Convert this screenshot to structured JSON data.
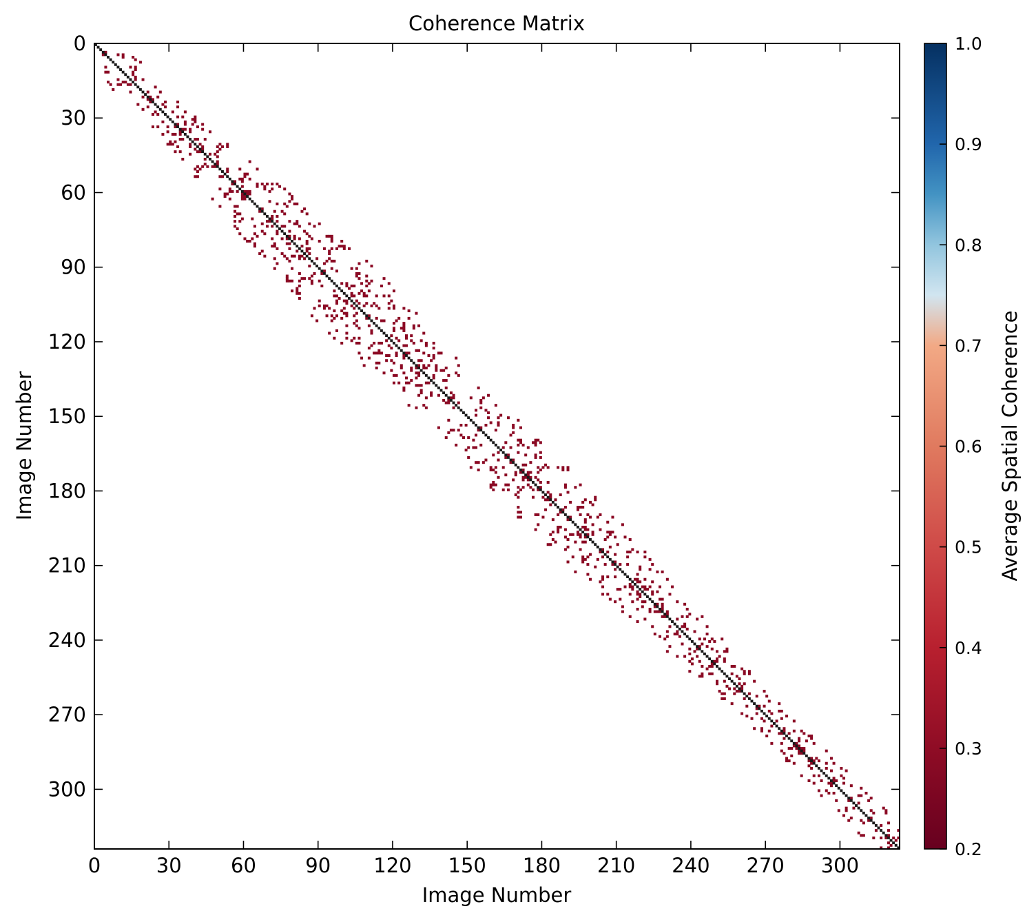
{
  "chart_data": {
    "type": "heatmap",
    "title": "Coherence Matrix",
    "xlabel": "Image Number",
    "ylabel": "Image Number",
    "n_images": 324,
    "x_ticks": [
      0,
      30,
      60,
      90,
      120,
      150,
      180,
      210,
      240,
      270,
      300
    ],
    "y_ticks": [
      0,
      30,
      60,
      90,
      120,
      150,
      180,
      210,
      240,
      270,
      300
    ],
    "xlim": [
      0,
      324
    ],
    "ylim": [
      324,
      0
    ],
    "colorbar": {
      "label": "Average Spatial Coherence",
      "range": [
        0.2,
        1.0
      ],
      "ticks": [
        "1.0",
        "0.9",
        "0.8",
        "0.7",
        "0.6",
        "0.5",
        "0.4",
        "0.3",
        "0.2"
      ],
      "hidden_band": [
        0.7,
        0.75
      ],
      "stops": [
        {
          "v": 0.2,
          "color": "#67001f"
        },
        {
          "v": 0.3,
          "color": "#8f0c25"
        },
        {
          "v": 0.4,
          "color": "#b8202f"
        },
        {
          "v": 0.5,
          "color": "#cf4a48"
        },
        {
          "v": 0.6,
          "color": "#e07a5f"
        },
        {
          "v": 0.7,
          "color": "#f2a985"
        },
        {
          "v": 0.75,
          "color": "#d1e5f0"
        },
        {
          "v": 0.8,
          "color": "#92c5de"
        },
        {
          "v": 0.85,
          "color": "#4393c3"
        },
        {
          "v": 0.9,
          "color": "#2166ac"
        },
        {
          "v": 1.0,
          "color": "#053061"
        }
      ]
    },
    "cell_color": "#8b0a24",
    "diagonal_color": "#1a1a1a",
    "bandwidth_profile": [
      {
        "image": 0,
        "halfwidth": 10
      },
      {
        "image": 30,
        "halfwidth": 12
      },
      {
        "image": 60,
        "halfwidth": 18
      },
      {
        "image": 90,
        "halfwidth": 22
      },
      {
        "image": 120,
        "halfwidth": 20
      },
      {
        "image": 150,
        "halfwidth": 18
      },
      {
        "image": 180,
        "halfwidth": 20
      },
      {
        "image": 210,
        "halfwidth": 16
      },
      {
        "image": 240,
        "halfwidth": 12
      },
      {
        "image": 270,
        "halfwidth": 10
      },
      {
        "image": 300,
        "halfwidth": 10
      },
      {
        "image": 324,
        "halfwidth": 8
      }
    ],
    "density": 0.11
  }
}
